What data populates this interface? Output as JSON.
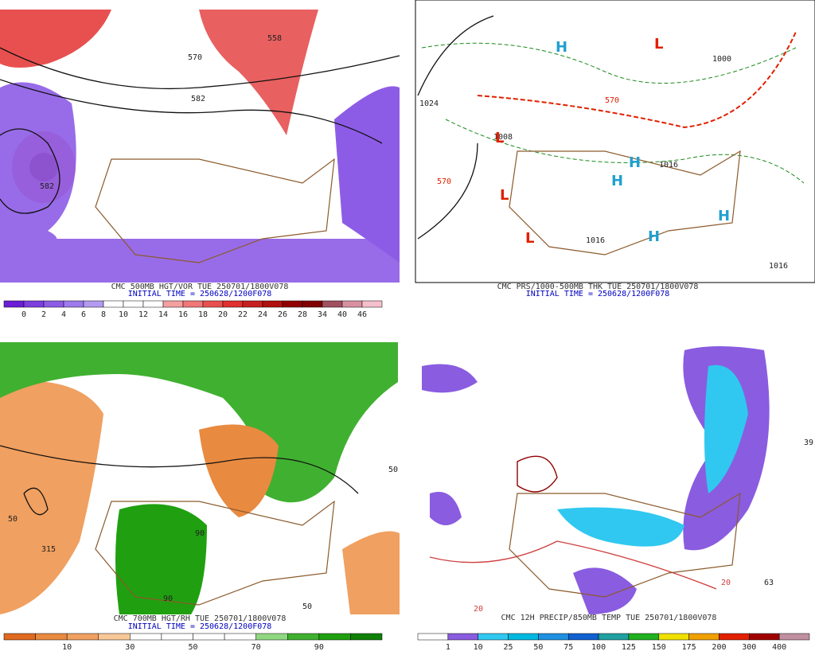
{
  "panels": [
    {
      "caption": "CMC 500MB HGT/VOR TUE 250701/1800V078",
      "init_time": "INITIAL TIME = 250628/1200F078",
      "colorbar": {
        "labels": [
          0,
          2,
          4,
          6,
          8,
          10,
          12,
          14,
          16,
          18,
          20,
          22,
          24,
          26,
          28,
          34,
          40,
          46
        ],
        "colors": [
          "#6a1fd6",
          "#7b3fe0",
          "#8d5ce6",
          "#9e7aec",
          "#b39af0",
          "#ffffff",
          "#ffffff",
          "#ffffff",
          "#f4a0a0",
          "#f07878",
          "#e85050",
          "#e03030",
          "#c82020",
          "#b01010",
          "#900000",
          "#800000",
          "#a05060",
          "#d890a0",
          "#f4c0cc"
        ]
      },
      "map_labels": [
        "570",
        "558",
        "582",
        "582"
      ]
    },
    {
      "caption": "CMC PRS/1000-500MB THK TUE 250701/1800V078",
      "init_time": "INITIAL TIME = 250628/1200F078",
      "map_labels": [
        "1024",
        "1000",
        "1008",
        "1016",
        "1016",
        "570",
        "570",
        "1016",
        "H",
        "H",
        "H",
        "H",
        "H",
        "L",
        "L",
        "L",
        "L"
      ]
    },
    {
      "caption": "CMC 700MB HGT/RH TUE 250701/1800V078",
      "init_time": "INITIAL TIME = 250628/1200F078",
      "colorbar": {
        "labels": [
          10,
          30,
          50,
          70,
          90
        ],
        "colors": [
          "#e06a20",
          "#e88a40",
          "#f0a060",
          "#f8c898",
          "#ffffff",
          "#ffffff",
          "#ffffff",
          "#ffffff",
          "#90d880",
          "#40b030",
          "#20a010",
          "#108008"
        ]
      },
      "map_labels": [
        "50",
        "50",
        "315",
        "90",
        "90",
        "50"
      ]
    },
    {
      "caption": "CMC 12H PRECIP/850MB TEMP TUE 250701/1800V078",
      "colorbar": {
        "labels": [
          1,
          10,
          25,
          50,
          75,
          100,
          125,
          150,
          175,
          200,
          300,
          400
        ],
        "colors": [
          "#ffffff",
          "#8a5ce0",
          "#30c8f0",
          "#00b8e0",
          "#2090e0",
          "#1060d0",
          "#20a0a0",
          "#20b020",
          "#f0e000",
          "#f0a000",
          "#e02000",
          "#a00000",
          "#c090a0"
        ]
      },
      "map_labels": [
        "20",
        "39",
        "63",
        "20"
      ]
    }
  ]
}
